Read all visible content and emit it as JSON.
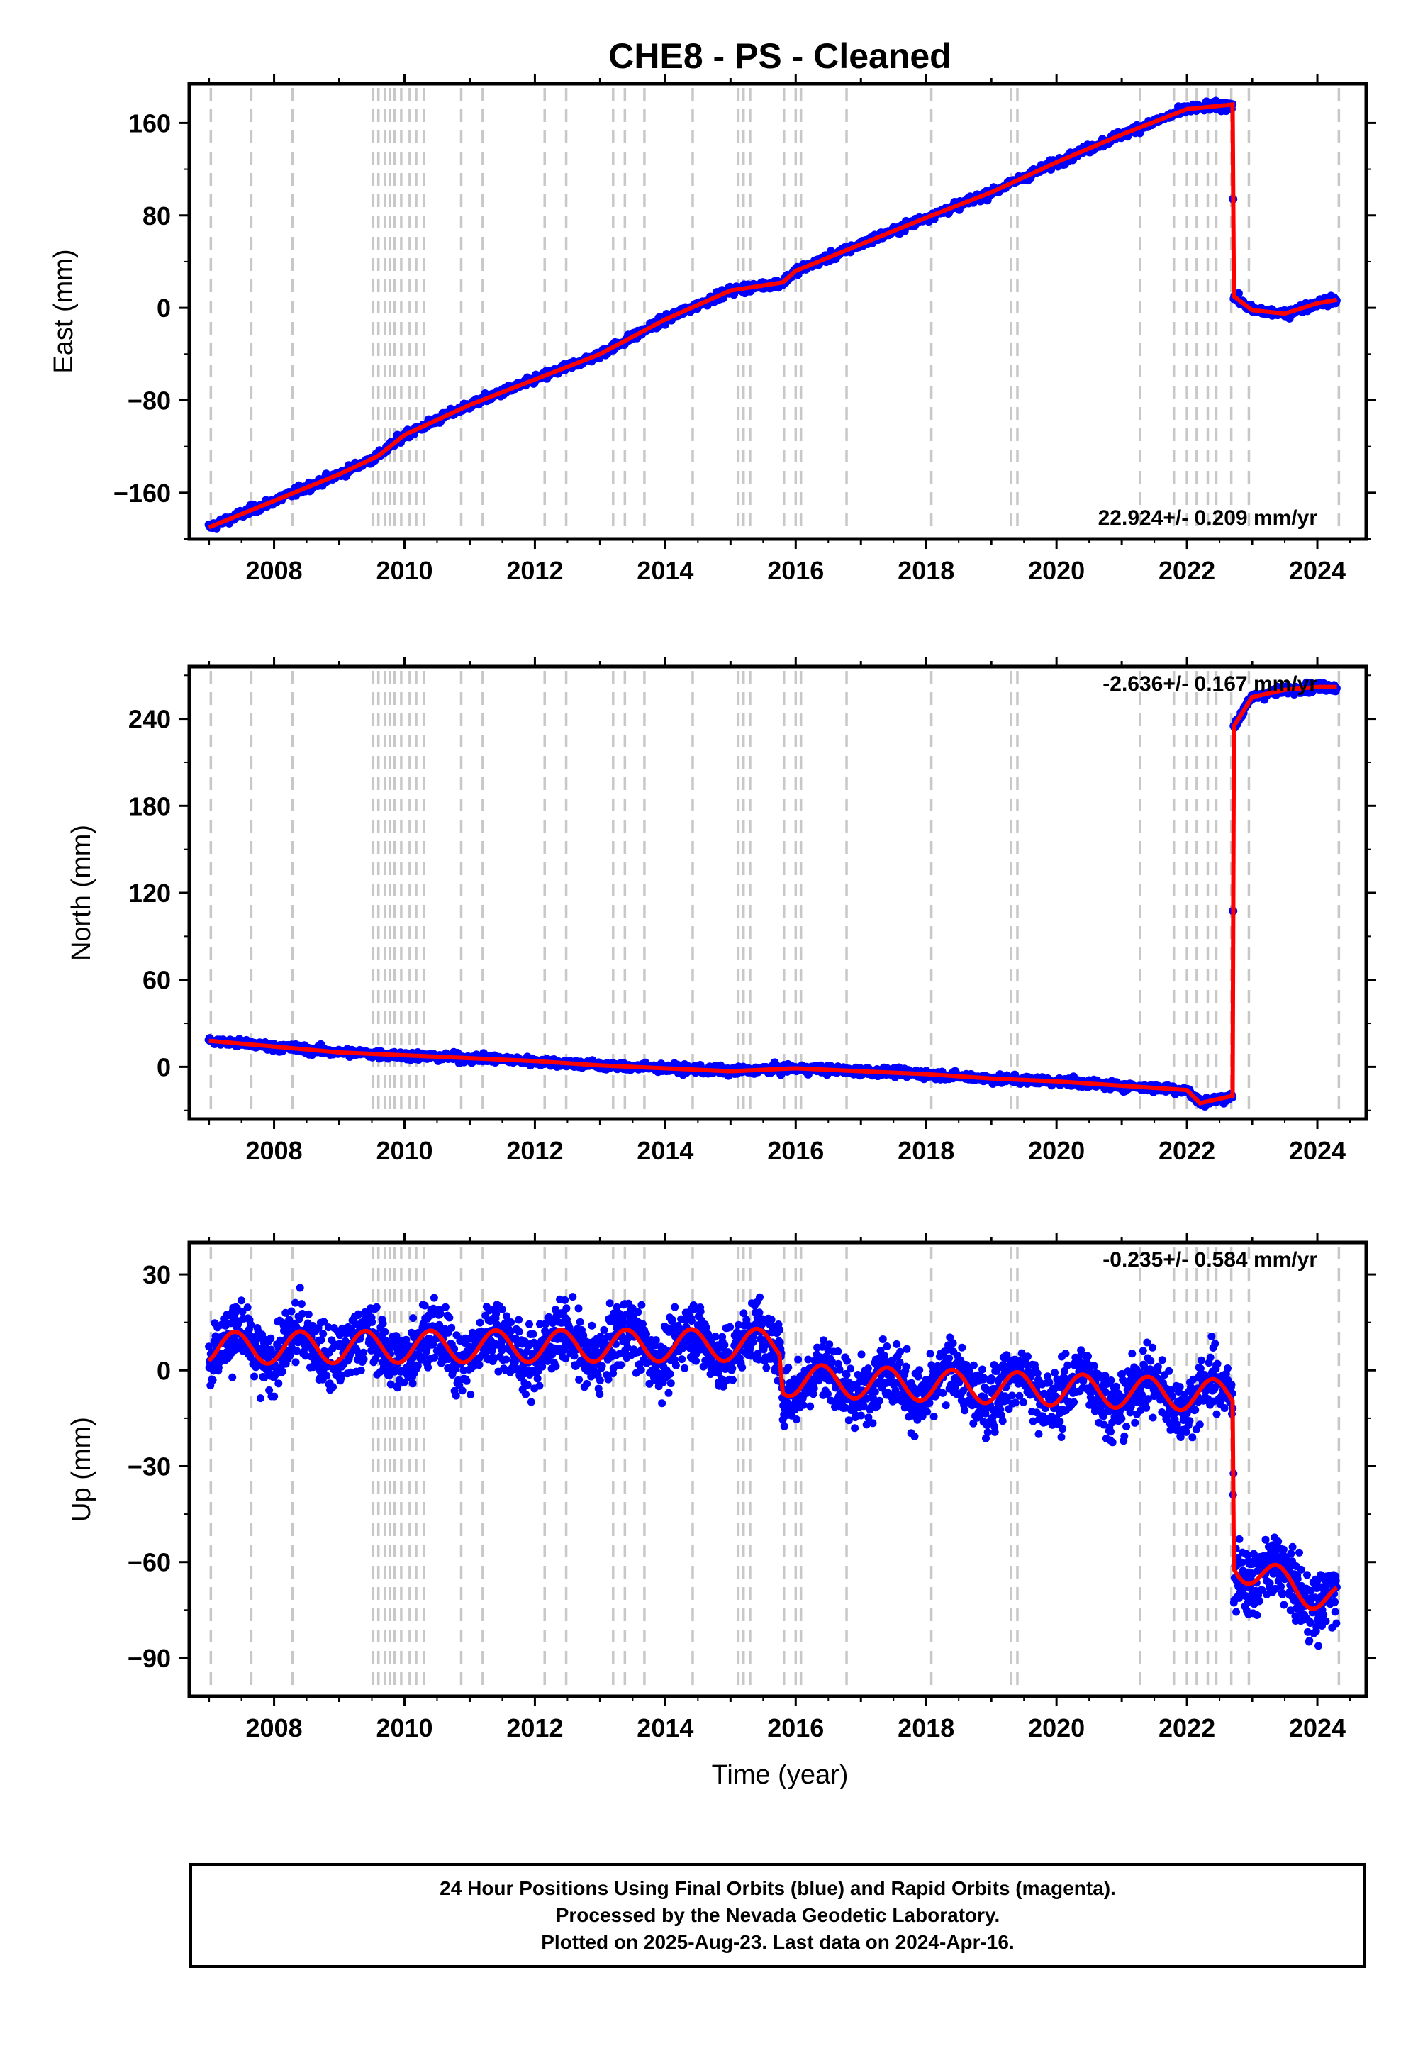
{
  "chart_data": {
    "type": "scatter",
    "title": "CHE8  - PS - Cleaned",
    "xlabel": "Time (year)",
    "x_ticks": [
      2008,
      2010,
      2012,
      2014,
      2016,
      2018,
      2020,
      2022,
      2024
    ],
    "xlim": [
      2006.7,
      2024.75
    ],
    "colors": {
      "points": "#0000ff",
      "fit": "#ff0000",
      "event_lines": "#c8c8c8"
    },
    "event_lines": [
      2007.03,
      2007.65,
      2008.28,
      2009.52,
      2009.6,
      2009.7,
      2009.78,
      2009.85,
      2009.95,
      2010.08,
      2010.18,
      2010.3,
      2010.87,
      2011.2,
      2012.15,
      2012.48,
      2013.2,
      2013.38,
      2013.68,
      2014.42,
      2015.12,
      2015.2,
      2015.3,
      2015.82,
      2016.0,
      2016.08,
      2016.78,
      2018.08,
      2019.3,
      2019.4,
      2021.28,
      2021.8,
      2022.0,
      2022.15,
      2022.32,
      2022.45,
      2022.68,
      2022.95,
      2024.33
    ],
    "panels": [
      {
        "ylabel": "East (mm)",
        "yticks": [
          -160,
          -80,
          0,
          80,
          160
        ],
        "ylim": [
          -200,
          194
        ],
        "rate_text": "22.924+/- 0.209 mm/yr",
        "rate_position": "bottom-right",
        "fit": [
          [
            2007.0,
            -190
          ],
          [
            2008.0,
            -167
          ],
          [
            2009.0,
            -144
          ],
          [
            2009.6,
            -128
          ],
          [
            2010.0,
            -110
          ],
          [
            2011.0,
            -84
          ],
          [
            2012.0,
            -62
          ],
          [
            2013.0,
            -40
          ],
          [
            2014.0,
            -10
          ],
          [
            2015.0,
            15
          ],
          [
            2015.8,
            22
          ],
          [
            2016.0,
            32
          ],
          [
            2017.0,
            55
          ],
          [
            2018.0,
            78
          ],
          [
            2019.0,
            100
          ],
          [
            2020.0,
            126
          ],
          [
            2021.0,
            150
          ],
          [
            2022.0,
            172
          ],
          [
            2022.7,
            176
          ],
          [
            2022.72,
            10
          ],
          [
            2023.0,
            -2
          ],
          [
            2023.5,
            -5
          ],
          [
            2024.0,
            4
          ],
          [
            2024.3,
            7
          ]
        ],
        "noise_mm": 2.5
      },
      {
        "ylabel": "North (mm)",
        "yticks": [
          0,
          60,
          120,
          180,
          240
        ],
        "ylim": [
          -36,
          276
        ],
        "rate_text": "-2.636+/- 0.167 mm/yr",
        "rate_position": "top-right",
        "fit": [
          [
            2007.0,
            18
          ],
          [
            2008.0,
            14
          ],
          [
            2009.0,
            10
          ],
          [
            2010.0,
            8
          ],
          [
            2011.0,
            6
          ],
          [
            2012.0,
            4
          ],
          [
            2013.0,
            1
          ],
          [
            2014.0,
            -1
          ],
          [
            2015.0,
            -3
          ],
          [
            2016.0,
            -1
          ],
          [
            2017.0,
            -3
          ],
          [
            2018.0,
            -5
          ],
          [
            2019.0,
            -8
          ],
          [
            2020.0,
            -10
          ],
          [
            2021.0,
            -13
          ],
          [
            2022.0,
            -16
          ],
          [
            2022.2,
            -25
          ],
          [
            2022.7,
            -20
          ],
          [
            2022.72,
            235
          ],
          [
            2023.0,
            255
          ],
          [
            2023.5,
            260
          ],
          [
            2024.0,
            262
          ],
          [
            2024.3,
            262
          ]
        ],
        "noise_mm": 2.0
      },
      {
        "ylabel": "Up (mm)",
        "yticks": [
          -90,
          -60,
          -30,
          0,
          30
        ],
        "ylim": [
          -102,
          40
        ],
        "rate_text": "-0.235+/- 0.584 mm/yr",
        "rate_position": "top-right",
        "fit_mean": [
          [
            2007.0,
            7
          ],
          [
            2015.75,
            8
          ],
          [
            2015.8,
            -3
          ],
          [
            2022.7,
            -8
          ],
          [
            2022.72,
            -60
          ],
          [
            2023.5,
            -67
          ],
          [
            2024.3,
            -72
          ]
        ],
        "seasonal_amplitude_mm": 5,
        "noise_mm": 7
      }
    ]
  },
  "footer": {
    "line1": "24 Hour Positions Using Final Orbits (blue) and Rapid Orbits (magenta).",
    "line2": "Processed by the Nevada Geodetic Laboratory.",
    "line3": "Plotted on 2025-Aug-23. Last data on 2024-Apr-16."
  }
}
